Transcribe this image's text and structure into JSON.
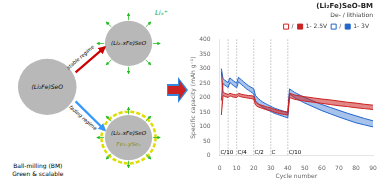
{
  "chart_data": {
    "type": "line",
    "title": "(Li₂Fe)SeO-BM",
    "subtitle": "De- / lithiation",
    "xlabel": "Cycle number",
    "ylabel": "Specific capacity (mAh g⁻¹)",
    "x": [
      1,
      2,
      3,
      4,
      5,
      6,
      7,
      8,
      9,
      10,
      11,
      12,
      13,
      14,
      15,
      16,
      17,
      18,
      19,
      20,
      21,
      22,
      23,
      24,
      25,
      26,
      27,
      28,
      29,
      30,
      31,
      32,
      33,
      34,
      35,
      36,
      37,
      38,
      39,
      40,
      41,
      42,
      43,
      44,
      45,
      46,
      47,
      48,
      49,
      50,
      55,
      60,
      65,
      70,
      75,
      80,
      85,
      90
    ],
    "series": [
      {
        "name": "/",
        "color": "#cc2222",
        "marker": "open_square",
        "values": [
          290,
          220,
          215,
          213,
          211,
          215,
          213,
          211,
          210,
          209,
          215,
          213,
          211,
          210,
          209,
          208,
          207,
          207,
          206,
          205,
          185,
          180,
          177,
          175,
          173,
          171,
          169,
          167,
          166,
          165,
          162,
          160,
          158,
          157,
          155,
          154,
          153,
          152,
          151,
          150,
          215,
          213,
          211,
          209,
          208,
          207,
          206,
          205,
          204,
          203,
          199,
          195,
          192,
          188,
          184,
          181,
          177,
          174
        ]
      },
      {
        "name": "1- 2.5V",
        "color": "#cc2222",
        "marker": "square",
        "values": [
          140,
          207,
          204,
          202,
          200,
          206,
          204,
          202,
          201,
          200,
          206,
          204,
          202,
          201,
          200,
          199,
          198,
          197,
          196,
          195,
          175,
          170,
          167,
          165,
          163,
          161,
          159,
          157,
          156,
          155,
          152,
          150,
          148,
          147,
          145,
          144,
          143,
          142,
          141,
          140,
          200,
          198,
          196,
          194,
          193,
          192,
          191,
          190,
          189,
          188,
          184,
          180,
          176,
          172,
          169,
          165,
          162,
          159
        ]
      },
      {
        "name": "/",
        "color": "#2266cc",
        "marker": "open_square",
        "values": [
          300,
          265,
          260,
          256,
          252,
          268,
          263,
          258,
          254,
          250,
          270,
          265,
          260,
          255,
          250,
          245,
          241,
          237,
          234,
          230,
          208,
          200,
          195,
          190,
          186,
          182,
          179,
          176,
          173,
          170,
          167,
          164,
          162,
          160,
          158,
          156,
          154,
          152,
          150,
          148,
          230,
          226,
          222,
          218,
          215,
          212,
          209,
          206,
          203,
          200,
          188,
          176,
          166,
          156,
          146,
          137,
          128,
          120
        ]
      },
      {
        "name": "1- 3V",
        "color": "#2266cc",
        "marker": "square",
        "values": [
          190,
          248,
          243,
          239,
          235,
          252,
          247,
          242,
          238,
          234,
          254,
          249,
          244,
          239,
          234,
          229,
          225,
          221,
          217,
          213,
          190,
          182,
          177,
          172,
          168,
          164,
          161,
          158,
          155,
          152,
          149,
          146,
          144,
          142,
          140,
          138,
          136,
          134,
          132,
          130,
          212,
          208,
          204,
          200,
          196,
          193,
          190,
          187,
          184,
          181,
          168,
          155,
          144,
          133,
          123,
          113,
          106,
          99
        ]
      }
    ],
    "xlim": [
      0,
      90
    ],
    "ylim": [
      0,
      400
    ],
    "xticks": [
      0,
      10,
      20,
      30,
      40,
      50,
      60,
      70,
      80,
      90
    ],
    "yticks": [
      0,
      50,
      100,
      150,
      200,
      250,
      300,
      350,
      400
    ],
    "grid": false,
    "legend": "upper right",
    "vlines": [
      5,
      10,
      20,
      30,
      40
    ],
    "annotations": [
      {
        "text": "C/10",
        "x": 0.5,
        "y": 2
      },
      {
        "text": "C/4",
        "x": 10.5,
        "y": 2
      },
      {
        "text": "C/2",
        "x": 20.5,
        "y": 2
      },
      {
        "text": "C",
        "x": 30.5,
        "y": 2
      },
      {
        "text": "C/10",
        "x": 40.5,
        "y": 2
      },
      {
        "text": "(Li₂Fe)SeO"
      },
      {
        "text": "(Li₂₋xFe)SeO"
      },
      {
        "text": "(Li₂₋xFe)SeO"
      },
      {
        "text": "Fe₁₋ySeᵧ"
      },
      {
        "text": "stable regime"
      },
      {
        "text": "fading regime"
      },
      {
        "text": "Liₓ⁺"
      },
      {
        "text": "Ball-milling (BM)\nGreen & scalable"
      }
    ]
  }
}
